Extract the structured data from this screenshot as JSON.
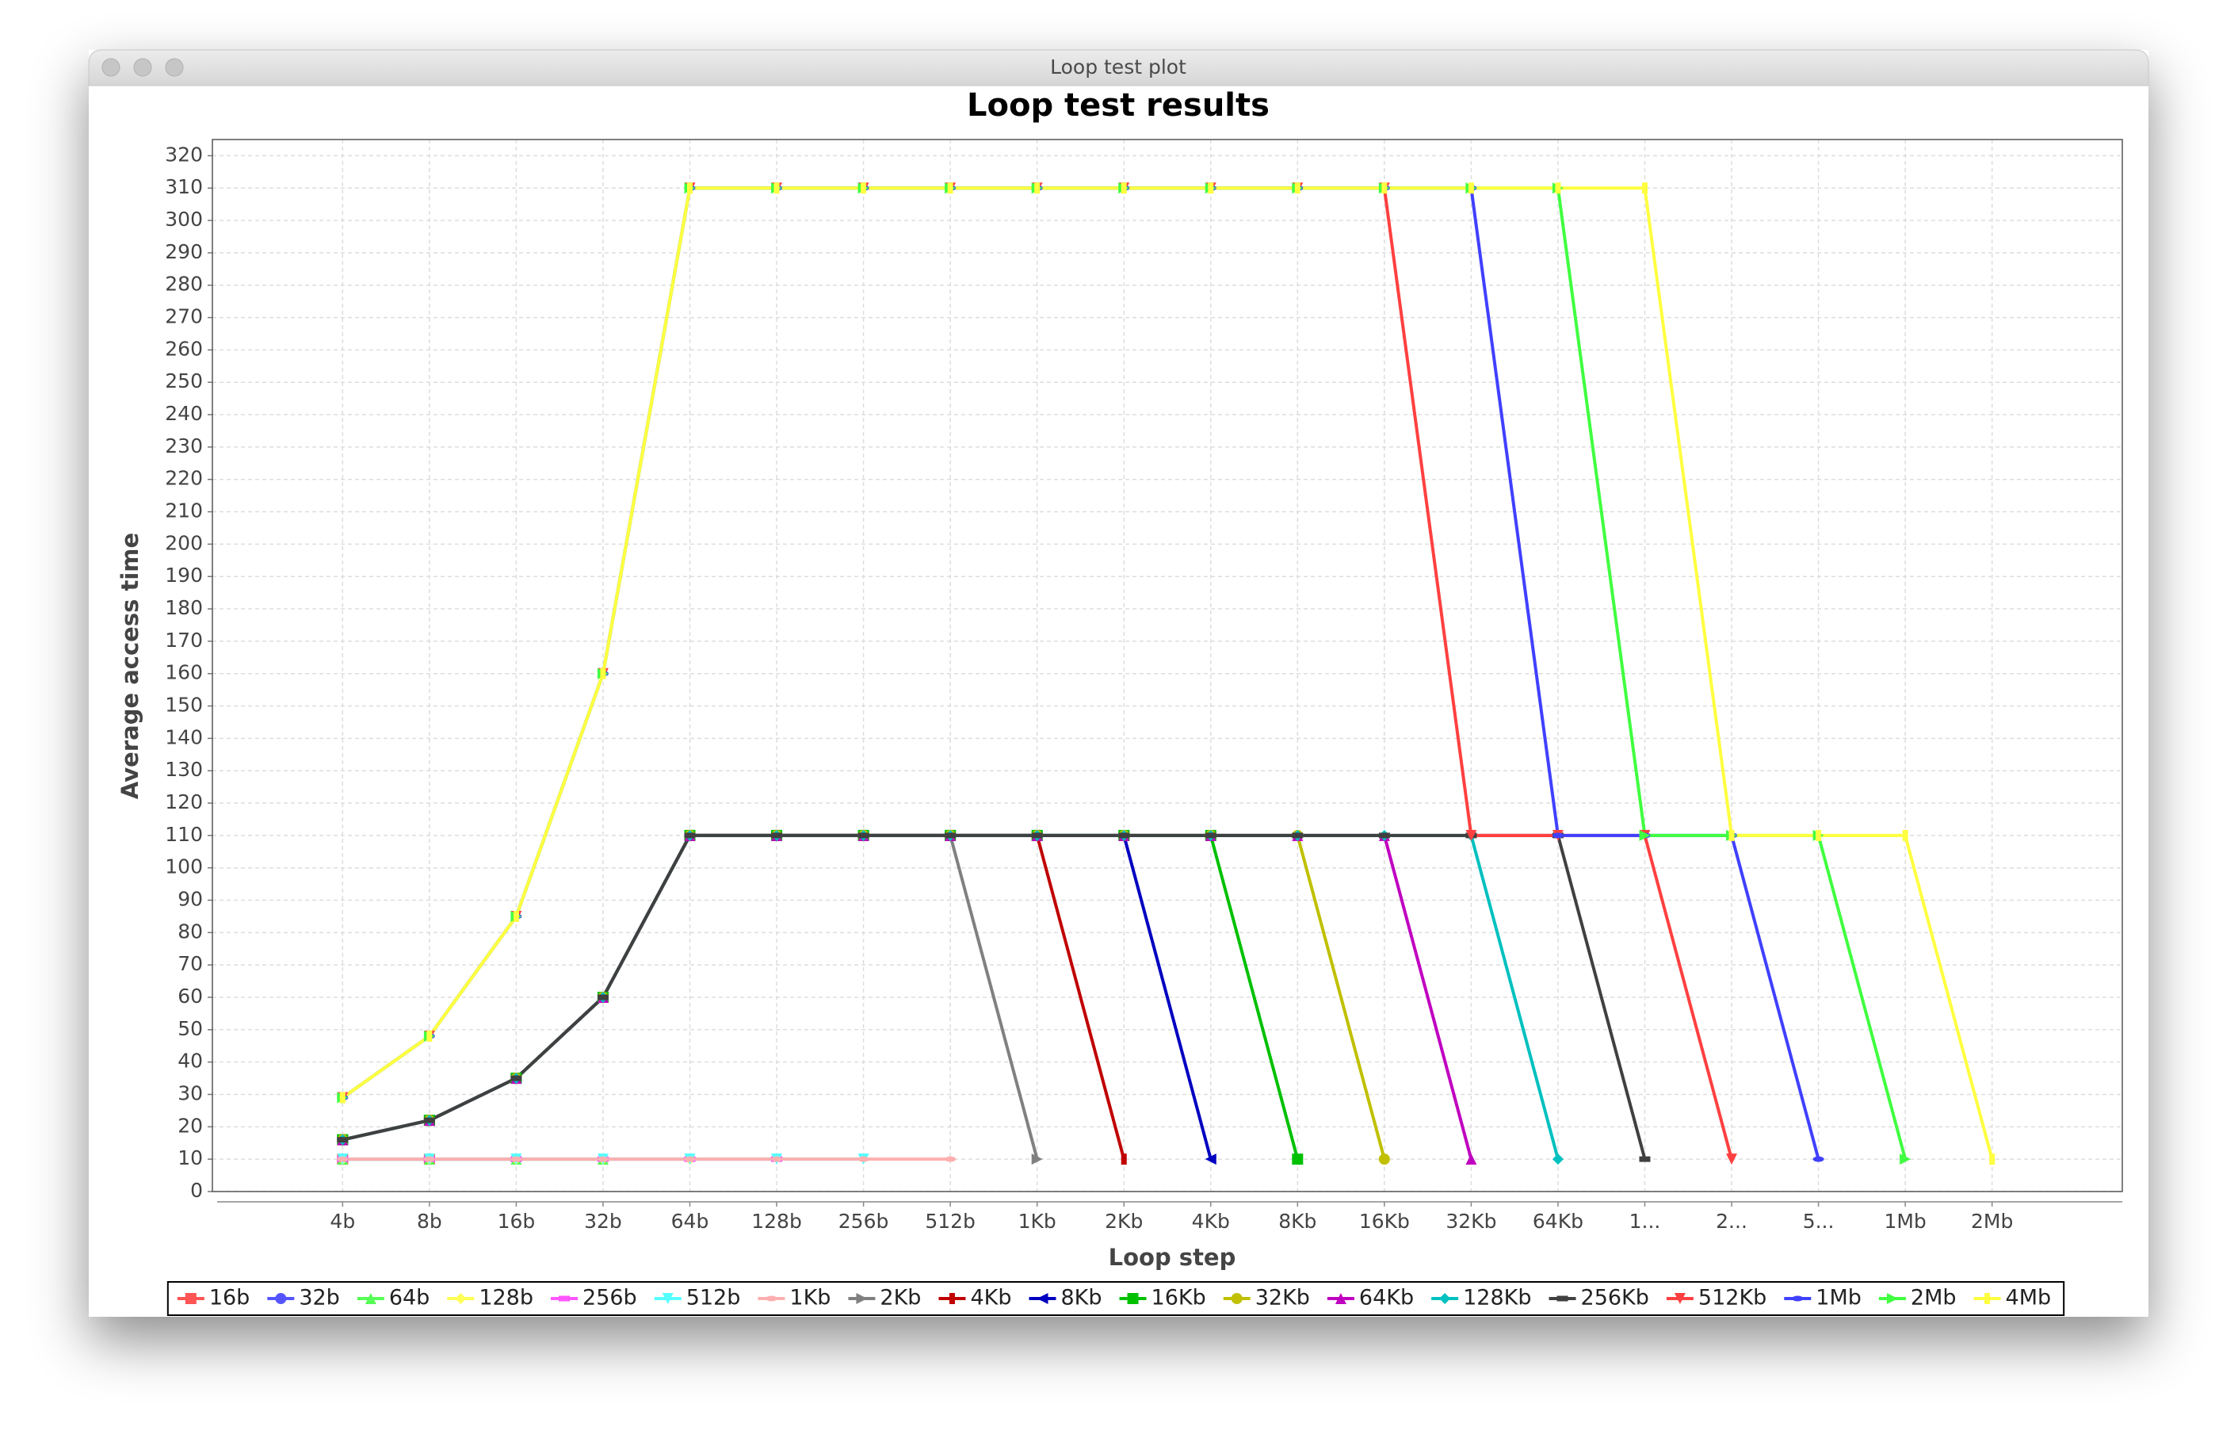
{
  "window_title": "Loop test plot",
  "chart_data": {
    "type": "line",
    "title": "Loop test results",
    "x_label": "Loop step",
    "y_label": "Average access time",
    "categories": [
      "4b",
      "8b",
      "16b",
      "32b",
      "64b",
      "128b",
      "256b",
      "512b",
      "1Kb",
      "2Kb",
      "4Kb",
      "8Kb",
      "16Kb",
      "32Kb",
      "64Kb",
      "1...",
      "2...",
      "5...",
      "1Mb",
      "2Mb"
    ],
    "ylim": [
      0,
      325
    ],
    "yticks": [
      0,
      10,
      20,
      30,
      40,
      50,
      60,
      70,
      80,
      90,
      100,
      110,
      120,
      130,
      140,
      150,
      160,
      170,
      180,
      190,
      200,
      210,
      220,
      230,
      240,
      250,
      260,
      270,
      280,
      290,
      300,
      310,
      320
    ],
    "grid": true,
    "legend": "bottom",
    "markers": true,
    "series": [
      {
        "name": "16b",
        "color": "#ff5555",
        "values": [
          10,
          10,
          null,
          null,
          null,
          null,
          null,
          null,
          null,
          null,
          null,
          null,
          null,
          null,
          null,
          null,
          null,
          null,
          null,
          null
        ]
      },
      {
        "name": "32b",
        "color": "#5555ff",
        "values": [
          10,
          10,
          10,
          null,
          null,
          null,
          null,
          null,
          null,
          null,
          null,
          null,
          null,
          null,
          null,
          null,
          null,
          null,
          null,
          null
        ]
      },
      {
        "name": "64b",
        "color": "#55ff55",
        "values": [
          10,
          10,
          10,
          10,
          null,
          null,
          null,
          null,
          null,
          null,
          null,
          null,
          null,
          null,
          null,
          null,
          null,
          null,
          null,
          null
        ]
      },
      {
        "name": "128b",
        "color": "#ffff55",
        "values": [
          10,
          10,
          10,
          10,
          10,
          null,
          null,
          null,
          null,
          null,
          null,
          null,
          null,
          null,
          null,
          null,
          null,
          null,
          null,
          null
        ]
      },
      {
        "name": "256b",
        "color": "#ff55ff",
        "values": [
          10,
          10,
          10,
          10,
          10,
          10,
          null,
          null,
          null,
          null,
          null,
          null,
          null,
          null,
          null,
          null,
          null,
          null,
          null,
          null
        ]
      },
      {
        "name": "512b",
        "color": "#55ffff",
        "values": [
          10,
          10,
          10,
          10,
          10,
          10,
          10,
          null,
          null,
          null,
          null,
          null,
          null,
          null,
          null,
          null,
          null,
          null,
          null,
          null
        ]
      },
      {
        "name": "1Kb",
        "color": "#ffafaf",
        "values": [
          10,
          10,
          10,
          10,
          10,
          10,
          10,
          10,
          null,
          null,
          null,
          null,
          null,
          null,
          null,
          null,
          null,
          null,
          null,
          null
        ]
      },
      {
        "name": "2Kb",
        "color": "#808080",
        "values": [
          16,
          22,
          35,
          60,
          110,
          110,
          110,
          110,
          10,
          null,
          null,
          null,
          null,
          null,
          null,
          null,
          null,
          null,
          null,
          null
        ]
      },
      {
        "name": "4Kb",
        "color": "#c00000",
        "values": [
          16,
          22,
          35,
          60,
          110,
          110,
          110,
          110,
          110,
          10,
          null,
          null,
          null,
          null,
          null,
          null,
          null,
          null,
          null,
          null
        ]
      },
      {
        "name": "8Kb",
        "color": "#0000c0",
        "values": [
          16,
          22,
          35,
          60,
          110,
          110,
          110,
          110,
          110,
          110,
          10,
          null,
          null,
          null,
          null,
          null,
          null,
          null,
          null,
          null
        ]
      },
      {
        "name": "16Kb",
        "color": "#00c000",
        "values": [
          16,
          22,
          35,
          60,
          110,
          110,
          110,
          110,
          110,
          110,
          110,
          10,
          null,
          null,
          null,
          null,
          null,
          null,
          null,
          null
        ]
      },
      {
        "name": "32Kb",
        "color": "#c0c000",
        "values": [
          16,
          22,
          35,
          60,
          110,
          110,
          110,
          110,
          110,
          110,
          110,
          110,
          10,
          null,
          null,
          null,
          null,
          null,
          null,
          null
        ]
      },
      {
        "name": "64Kb",
        "color": "#c000c0",
        "values": [
          16,
          22,
          35,
          60,
          110,
          110,
          110,
          110,
          110,
          110,
          110,
          110,
          110,
          10,
          null,
          null,
          null,
          null,
          null,
          null
        ]
      },
      {
        "name": "128Kb",
        "color": "#00c0c0",
        "values": [
          16,
          22,
          35,
          60,
          110,
          110,
          110,
          110,
          110,
          110,
          110,
          110,
          110,
          110,
          10,
          null,
          null,
          null,
          null,
          null
        ]
      },
      {
        "name": "256Kb",
        "color": "#404040",
        "values": [
          16,
          22,
          35,
          60,
          110,
          110,
          110,
          110,
          110,
          110,
          110,
          110,
          110,
          110,
          110,
          10,
          null,
          null,
          null,
          null
        ]
      },
      {
        "name": "512Kb",
        "color": "#ff4040",
        "values": [
          29,
          48,
          85,
          160,
          310,
          310,
          310,
          310,
          310,
          310,
          310,
          310,
          310,
          110,
          110,
          110,
          10,
          null,
          null,
          null
        ]
      },
      {
        "name": "1Mb",
        "color": "#4040ff",
        "values": [
          29,
          48,
          85,
          160,
          310,
          310,
          310,
          310,
          310,
          310,
          310,
          310,
          310,
          310,
          110,
          110,
          110,
          10,
          null,
          null
        ]
      },
      {
        "name": "2Mb",
        "color": "#40ff40",
        "values": [
          29,
          48,
          85,
          160,
          310,
          310,
          310,
          310,
          310,
          310,
          310,
          310,
          310,
          310,
          310,
          110,
          110,
          110,
          10,
          null
        ]
      },
      {
        "name": "4Mb",
        "color": "#ffff40",
        "values": [
          29,
          48,
          85,
          160,
          310,
          310,
          310,
          310,
          310,
          310,
          310,
          310,
          310,
          310,
          310,
          310,
          110,
          110,
          110,
          10
        ]
      }
    ]
  }
}
